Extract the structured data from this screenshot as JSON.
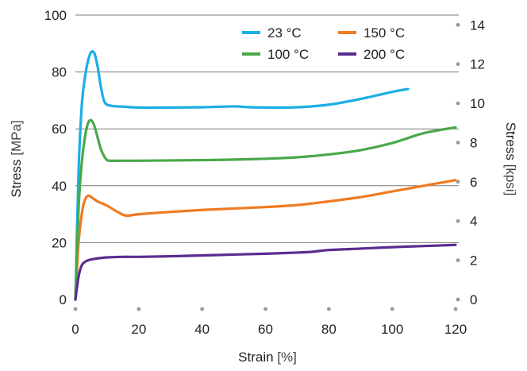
{
  "chart_data": {
    "type": "line",
    "xlabel_main": "Strain",
    "xlabel_unit": "[%]",
    "ylabel_main": "Stress",
    "ylabel_unit": "[MPa]",
    "y2label_main": "Stress",
    "y2label_unit": "[kpsi]",
    "xlim": [
      0,
      120
    ],
    "ylim": [
      0,
      100
    ],
    "y2lim": [
      0,
      14.5
    ],
    "x_ticks": [
      "0",
      "20",
      "40",
      "60",
      "80",
      "100",
      "120"
    ],
    "y_ticks": [
      "0",
      "20",
      "40",
      "60",
      "80",
      "100"
    ],
    "y2_ticks": [
      "0",
      "2",
      "4",
      "6",
      "8",
      "10",
      "12",
      "14"
    ],
    "grid": "horizontal",
    "legend_position": "top-right",
    "series": [
      {
        "name": "23 °C",
        "color": "#1aaee5",
        "x": [
          0,
          1,
          2,
          3,
          4,
          5,
          6,
          7,
          8,
          9,
          10,
          12,
          15,
          20,
          30,
          40,
          50,
          55,
          60,
          70,
          80,
          90,
          100,
          105
        ],
        "y": [
          0,
          45,
          68,
          78,
          84,
          87,
          86.5,
          82,
          75,
          70,
          68.5,
          68,
          67.8,
          67.5,
          67.5,
          67.6,
          67.9,
          67.6,
          67.5,
          67.6,
          68.5,
          70.5,
          73,
          74
        ]
      },
      {
        "name": "150 °C",
        "color": "#f07b22",
        "x": [
          0,
          1,
          2,
          3,
          4,
          5,
          7,
          10,
          13,
          16,
          20,
          30,
          40,
          50,
          60,
          70,
          80,
          90,
          100,
          110,
          120
        ],
        "y": [
          0,
          20,
          30,
          35,
          36.5,
          36,
          34.5,
          33,
          31,
          29.5,
          30,
          30.8,
          31.5,
          32,
          32.5,
          33.2,
          34.5,
          36,
          38,
          40,
          42
        ]
      },
      {
        "name": "100 °C",
        "color": "#4aa84a",
        "x": [
          0,
          1,
          2,
          3,
          4,
          5,
          6,
          7,
          8,
          9,
          10,
          11,
          13,
          20,
          30,
          40,
          50,
          60,
          70,
          80,
          90,
          100,
          110,
          120
        ],
        "y": [
          0,
          32,
          48,
          57,
          62,
          63,
          61,
          57,
          53,
          50.5,
          49,
          48.8,
          48.8,
          48.8,
          48.9,
          49,
          49.2,
          49.5,
          50,
          51,
          52.5,
          55,
          58.5,
          60.5
        ]
      },
      {
        "name": "200 °C",
        "color": "#5b2c8f",
        "x": [
          0,
          1,
          2,
          3,
          4,
          6,
          8,
          10,
          15,
          20,
          30,
          40,
          50,
          60,
          70,
          75,
          80,
          90,
          100,
          110,
          120
        ],
        "y": [
          0,
          8,
          12,
          13.2,
          13.8,
          14.3,
          14.6,
          14.8,
          15,
          15,
          15.2,
          15.5,
          15.8,
          16.1,
          16.5,
          16.8,
          17.4,
          17.9,
          18.4,
          18.8,
          19.2
        ]
      }
    ]
  }
}
